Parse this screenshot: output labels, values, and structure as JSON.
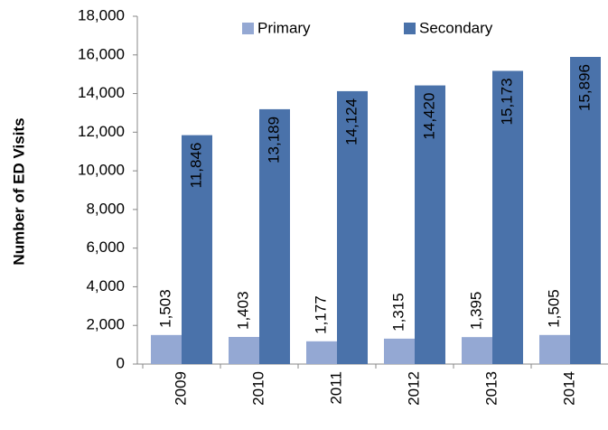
{
  "chart_data": {
    "type": "bar",
    "y_label": "Number of ED Visits",
    "categories": [
      "2009",
      "2010",
      "2011",
      "2012",
      "2013",
      "2014"
    ],
    "series": [
      {
        "name": "Primary",
        "color": "#94a8d3",
        "values": [
          1503,
          1403,
          1177,
          1315,
          1395,
          1505
        ],
        "value_labels": [
          "1,503",
          "1,403",
          "1,177",
          "1,315",
          "1,395",
          "1,505"
        ]
      },
      {
        "name": "Secondary",
        "color": "#4a72aa",
        "values": [
          11846,
          13189,
          14124,
          14420,
          15173,
          15896
        ],
        "value_labels": [
          "11,846",
          "13,189",
          "14,124",
          "14,420",
          "15,173",
          "15,896"
        ]
      }
    ],
    "ylim": [
      0,
      18000
    ],
    "yticks": [
      0,
      {
        "value": 2000,
        "label": "2,000"
      },
      {
        "value": 4000,
        "label": "4,000"
      },
      {
        "value": 6000,
        "label": "6,000"
      },
      {
        "value": 8000,
        "label": "8,000"
      },
      {
        "value": 10000,
        "label": "10,000"
      },
      {
        "value": 12000,
        "label": "12,000"
      },
      {
        "value": 14000,
        "label": "14,000"
      },
      {
        "value": 16000,
        "label": "16,000"
      },
      {
        "value": 18000,
        "label": "18,000"
      }
    ],
    "grid": false
  }
}
